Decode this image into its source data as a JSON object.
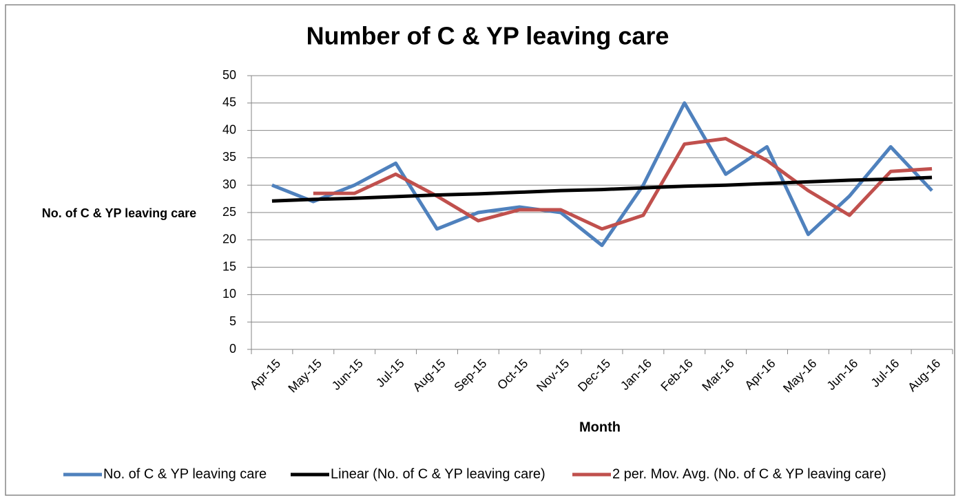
{
  "chart_data": {
    "type": "line",
    "title": "Number of C & YP leaving care",
    "x_label": "Month",
    "y_label": "No. of C & YP leaving care",
    "categories": [
      "Apr-15",
      "May-15",
      "Jun-15",
      "Jul-15",
      "Aug-15",
      "Sep-15",
      "Oct-15",
      "Nov-15",
      "Dec-15",
      "Jan-16",
      "Feb-16",
      "Mar-16",
      "Apr-16",
      "May-16",
      "Jun-16",
      "Jul-16",
      "Aug-16"
    ],
    "series": [
      {
        "name": "No. of C & YP leaving care",
        "color": "#4f81bd",
        "values": [
          30,
          27,
          30,
          34,
          22,
          25,
          26,
          25,
          19,
          30,
          45,
          32,
          37,
          21,
          28,
          37,
          29
        ]
      },
      {
        "name": "Linear (No. of C & YP leaving care)",
        "color": "#000000",
        "values": [
          27.1,
          27.4,
          27.6,
          27.9,
          28.2,
          28.4,
          28.7,
          29.0,
          29.2,
          29.5,
          29.8,
          30.0,
          30.3,
          30.6,
          30.9,
          31.1,
          31.4
        ]
      },
      {
        "name": "2 per. Mov. Avg. (No. of C & YP leaving care)",
        "color": "#c0504d",
        "values": [
          null,
          28.5,
          28.5,
          32,
          28,
          23.5,
          25.5,
          25.5,
          22,
          24.5,
          37.5,
          38.5,
          34.5,
          29,
          24.5,
          32.5,
          33
        ]
      }
    ],
    "ylim": [
      0,
      50
    ],
    "yticks": [
      0,
      5,
      10,
      15,
      20,
      25,
      30,
      35,
      40,
      45,
      50
    ],
    "grid": true,
    "legend": "bottom"
  }
}
